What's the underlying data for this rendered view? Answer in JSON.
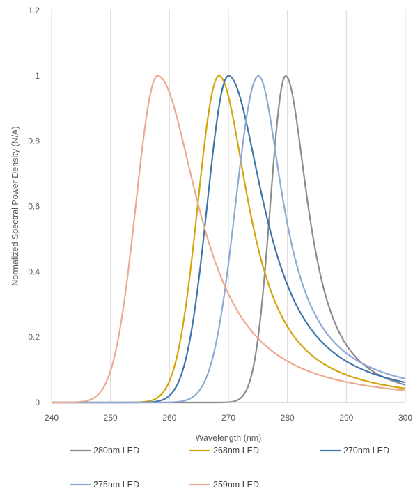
{
  "chart_data": {
    "type": "line",
    "title": "",
    "xlabel": "Wavelength (nm)",
    "ylabel": "Normalized Spectral Power Density (N/A)",
    "xlim": [
      240,
      300
    ],
    "ylim": [
      0,
      1.2
    ],
    "x_ticks": [
      "240",
      "250",
      "260",
      "270",
      "280",
      "290",
      "300"
    ],
    "y_ticks": [
      "0",
      "0.2",
      "0.4",
      "0.6",
      "0.8",
      "1",
      "1.2"
    ],
    "grid": "vertical",
    "legend_position": "bottom",
    "series": [
      {
        "name": "280nm LED",
        "color": "#8c8c8c",
        "peak": 279.7,
        "w_left": 2.6,
        "w_right": 4.6,
        "left_power": 2,
        "right_power": 1.55
      },
      {
        "name": "268nm LED",
        "color": "#d4a50b",
        "peak": 268.4,
        "w_left": 3.6,
        "w_right": 6.0,
        "left_power": 2,
        "right_power": 1.6
      },
      {
        "name": "270nm LED",
        "color": "#3e76ab",
        "peak": 270.0,
        "w_left": 3.6,
        "w_right": 7.3,
        "left_power": 2,
        "right_power": 1.55
      },
      {
        "name": "275nm LED",
        "color": "#8fa9d6",
        "peak": 275.1,
        "w_left": 3.9,
        "w_right": 4.4,
        "left_power": 2,
        "right_power": 2
      },
      {
        "name": "259nm LED",
        "color": "#eda98e",
        "peak": 258.0,
        "w_left": 3.7,
        "w_right": 8.7,
        "left_power": 2,
        "right_power": 1.45
      }
    ]
  }
}
